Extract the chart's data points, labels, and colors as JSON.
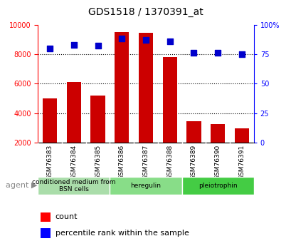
{
  "title": "GDS1518 / 1370391_at",
  "categories": [
    "GSM76383",
    "GSM76384",
    "GSM76385",
    "GSM76386",
    "GSM76387",
    "GSM76388",
    "GSM76389",
    "GSM76390",
    "GSM76391"
  ],
  "counts": [
    5000,
    6100,
    5200,
    9500,
    9450,
    7800,
    3450,
    3250,
    2950
  ],
  "percentiles": [
    80,
    83,
    82,
    88,
    87,
    86,
    76,
    76,
    75
  ],
  "ylim_left": [
    2000,
    10000
  ],
  "ylim_right": [
    0,
    100
  ],
  "yticks_left": [
    2000,
    4000,
    6000,
    8000,
    10000
  ],
  "yticks_right": [
    0,
    25,
    50,
    75,
    100
  ],
  "bar_color": "#cc0000",
  "dot_color": "#0000cc",
  "grid_color": "#000000",
  "agent_groups": [
    {
      "label": "conditioned medium from\nBSN cells",
      "start": 0,
      "end": 3,
      "color": "#ccffcc"
    },
    {
      "label": "heregulin",
      "start": 3,
      "end": 6,
      "color": "#88ee88"
    },
    {
      "label": "pleiotrophin",
      "start": 6,
      "end": 9,
      "color": "#44dd44"
    }
  ],
  "legend_count_label": "count",
  "legend_pct_label": "percentile rank within the sample",
  "agent_label": "agent",
  "background_color": "#ffffff",
  "plot_bg_color": "#ffffff",
  "tick_label_area_color": "#cccccc"
}
